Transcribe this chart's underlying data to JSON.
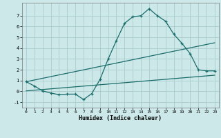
{
  "xlabel": "Humidex (Indice chaleur)",
  "background_color": "#cce8e8",
  "grid_color": "#aacccc",
  "line_color": "#1a6b6b",
  "xlim": [
    -0.5,
    23.5
  ],
  "ylim": [
    -1.5,
    8.2
  ],
  "yticks": [
    -1,
    0,
    1,
    2,
    3,
    4,
    5,
    6,
    7
  ],
  "xticks": [
    0,
    1,
    2,
    3,
    4,
    5,
    6,
    7,
    8,
    9,
    10,
    11,
    12,
    13,
    14,
    15,
    16,
    17,
    18,
    19,
    20,
    21,
    22,
    23
  ],
  "line1_x": [
    0,
    1,
    2,
    3,
    4,
    5,
    6,
    7,
    8,
    9,
    10,
    11,
    12,
    13,
    14,
    15,
    16,
    17,
    18,
    19,
    20,
    21,
    22,
    23
  ],
  "line1_y": [
    0.9,
    0.5,
    0.05,
    -0.15,
    -0.3,
    -0.25,
    -0.25,
    -0.75,
    -0.2,
    1.1,
    3.0,
    4.7,
    6.3,
    6.9,
    7.0,
    7.65,
    7.0,
    6.5,
    5.3,
    4.45,
    3.5,
    2.0,
    1.9,
    1.9
  ],
  "line2_x": [
    0,
    23
  ],
  "line2_y": [
    0.9,
    4.5
  ],
  "line3_x": [
    0,
    23
  ],
  "line3_y": [
    0.05,
    1.5
  ]
}
